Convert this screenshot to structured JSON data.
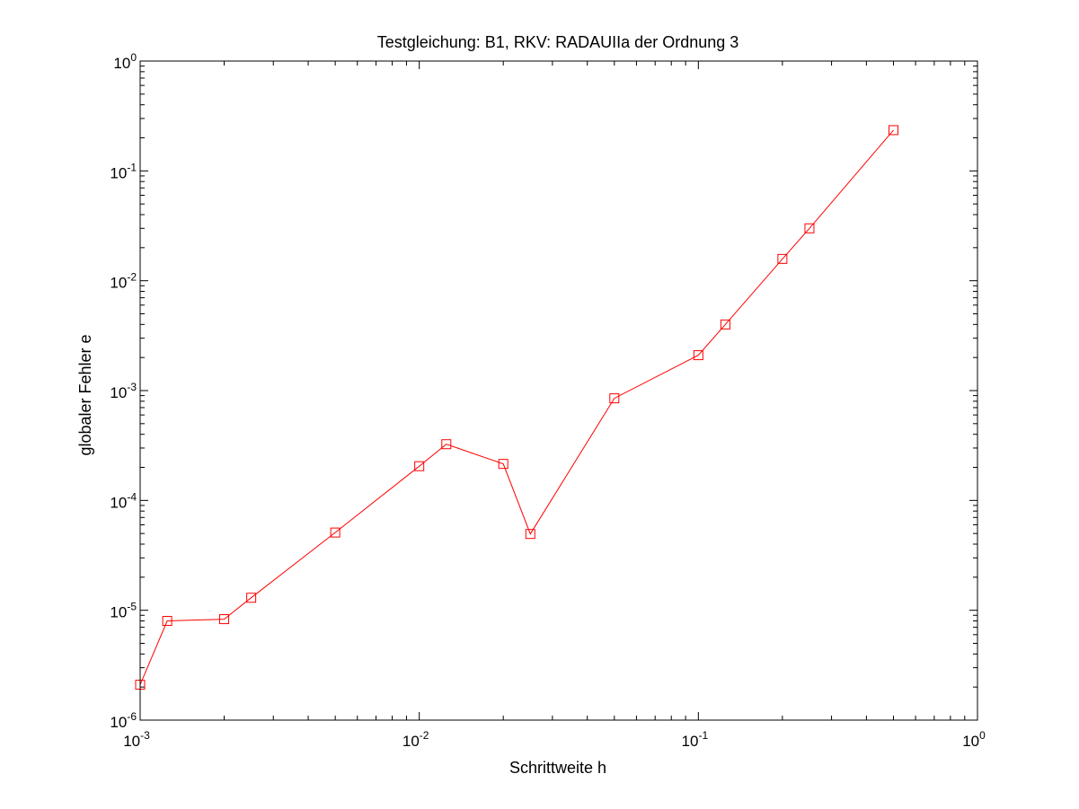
{
  "chart_data": {
    "type": "line",
    "title": "Testgleichung: B1, RKV: RADAUIIa der Ordnung 3",
    "xlabel": "Schrittweite h",
    "ylabel": "globaler Fehler e",
    "xscale": "log",
    "yscale": "log",
    "xlim": [
      0.001,
      1
    ],
    "ylim": [
      1e-06,
      1
    ],
    "grid": false,
    "legend": "none",
    "xticks": [
      {
        "base": "10",
        "exp": "-3",
        "value": 0.001
      },
      {
        "base": "10",
        "exp": "-2",
        "value": 0.01
      },
      {
        "base": "10",
        "exp": "-1",
        "value": 0.1
      },
      {
        "base": "10",
        "exp": "0",
        "value": 1
      }
    ],
    "yticks": [
      {
        "base": "10",
        "exp": "-6",
        "value": 1e-06
      },
      {
        "base": "10",
        "exp": "-5",
        "value": 1e-05
      },
      {
        "base": "10",
        "exp": "-4",
        "value": 0.0001
      },
      {
        "base": "10",
        "exp": "-3",
        "value": 0.001
      },
      {
        "base": "10",
        "exp": "-2",
        "value": 0.01
      },
      {
        "base": "10",
        "exp": "-1",
        "value": 0.1
      },
      {
        "base": "10",
        "exp": "0",
        "value": 1
      }
    ],
    "series": [
      {
        "color": "#ff0000",
        "marker": "square",
        "x": [
          0.001,
          0.00125,
          0.002,
          0.0025,
          0.005,
          0.01,
          0.0125,
          0.02,
          0.025,
          0.05,
          0.1,
          0.125,
          0.2,
          0.25,
          0.5
        ],
        "y": [
          2.1e-06,
          8e-06,
          8.3e-06,
          1.3e-05,
          5.1e-05,
          0.000205,
          0.000325,
          0.000215,
          4.95e-05,
          0.00085,
          0.0021,
          0.004,
          0.0158,
          0.03,
          0.235
        ]
      }
    ]
  }
}
